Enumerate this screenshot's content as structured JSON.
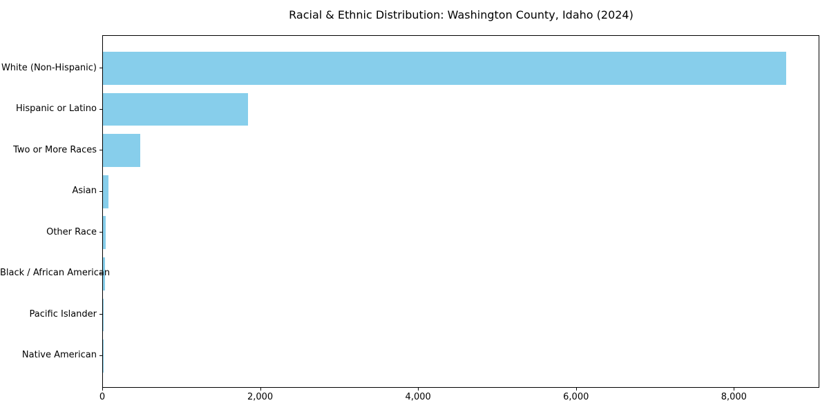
{
  "title": "Racial & Ethnic Distribution: Washington County, Idaho (2024)",
  "chart_data": {
    "type": "bar",
    "orientation": "horizontal",
    "title": "Racial & Ethnic Distribution: Washington County, Idaho (2024)",
    "xlabel": "",
    "ylabel": "",
    "categories": [
      "White (Non-Hispanic)",
      "Hispanic or Latino",
      "Two or More Races",
      "Asian",
      "Other Race",
      "Black / African American",
      "Pacific Islander",
      "Native American"
    ],
    "values": [
      8650,
      1840,
      475,
      72,
      39,
      30,
      10,
      7
    ],
    "xlim": [
      0,
      9082
    ],
    "x_ticks": [
      0,
      2000,
      4000,
      6000,
      8000
    ],
    "x_tick_labels": [
      "0",
      "2,000",
      "4,000",
      "6,000",
      "8,000"
    ],
    "bar_color": "#87CEEB",
    "spine_color": "#000000",
    "text_color": "#000000",
    "grid": false,
    "legend": false
  }
}
